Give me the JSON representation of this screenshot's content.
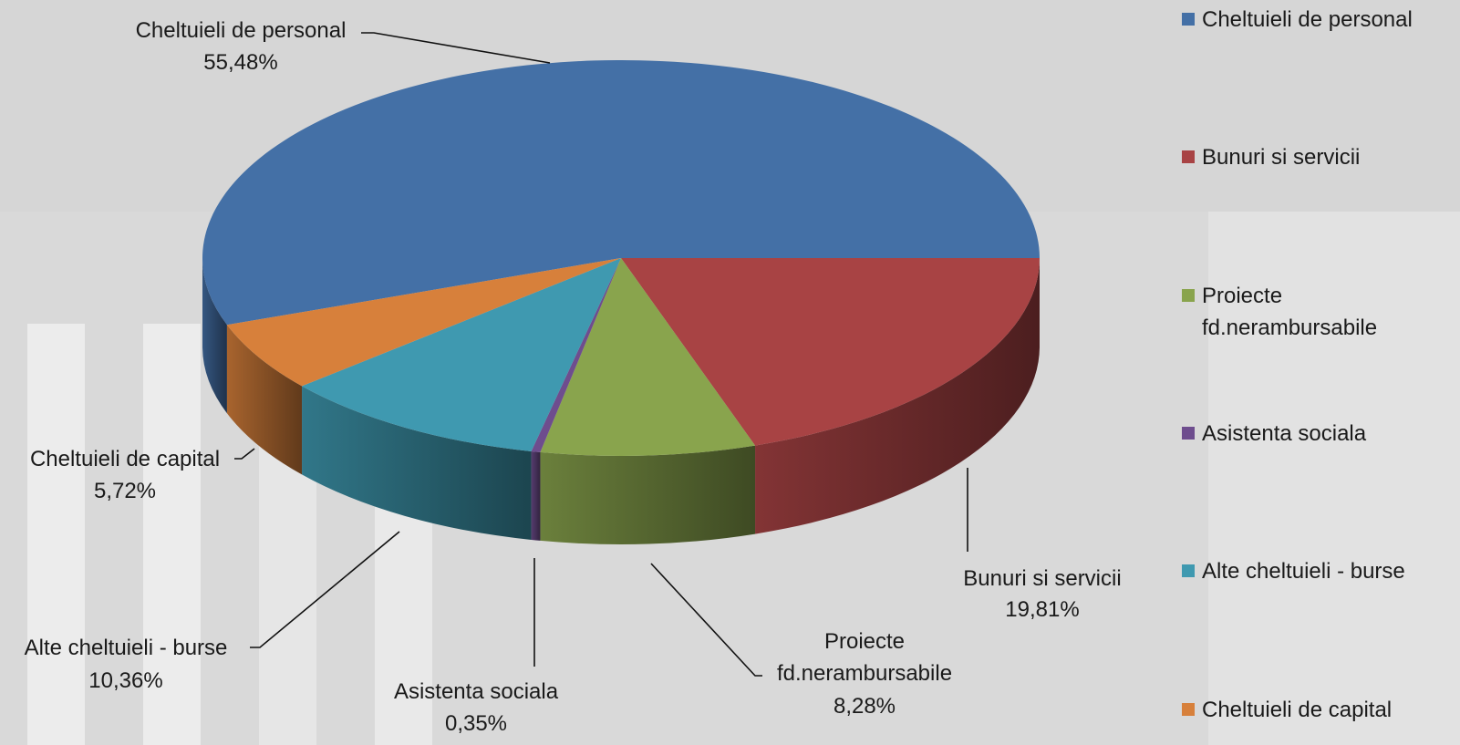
{
  "chart_data": {
    "type": "pie",
    "variant": "3d",
    "title": "",
    "slices": [
      {
        "name": "Cheltuieli de personal",
        "value": 55.48,
        "label": "55,48%",
        "color": "#4470a6"
      },
      {
        "name": "Bunuri si servicii",
        "value": 19.81,
        "label": "19,81%",
        "color": "#a84344"
      },
      {
        "name": "Proiecte fd.nerambursabile",
        "value": 8.28,
        "label": "8,28%",
        "color": "#89a44d"
      },
      {
        "name": "Asistenta sociala",
        "value": 0.35,
        "label": "0,35%",
        "color": "#6e4d8e"
      },
      {
        "name": "Alte cheltuieli - burse",
        "value": 10.36,
        "label": "10,36%",
        "color": "#3f99b0"
      },
      {
        "name": "Cheltuieli de capital",
        "value": 5.72,
        "label": "5,72%",
        "color": "#d7803b"
      }
    ],
    "legend_position": "right",
    "legend": [
      {
        "label": "Cheltuieli de personal",
        "color": "#4470a6"
      },
      {
        "label": "Bunuri si servicii",
        "color": "#a84344"
      },
      {
        "label": "Proiecte fd.nerambursabile",
        "color": "#89a44d"
      },
      {
        "label": "Asistenta sociala",
        "color": "#6e4d8e"
      },
      {
        "label": "Alte cheltuieli - burse",
        "color": "#3f99b0"
      },
      {
        "label": "Cheltuieli de capital",
        "color": "#d7803b"
      }
    ]
  }
}
